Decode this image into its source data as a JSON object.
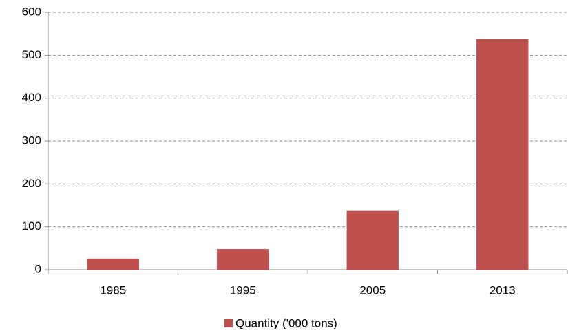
{
  "chart_data": {
    "type": "bar",
    "categories": [
      "1985",
      "1995",
      "2005",
      "2013"
    ],
    "series": [
      {
        "name": "Quantity ('000 tons)",
        "color": "#c0504d",
        "values": [
          26,
          48,
          137,
          538
        ]
      }
    ],
    "ylim": [
      0,
      600
    ],
    "yticks": [
      0,
      100,
      200,
      300,
      400,
      500,
      600
    ],
    "grid": true,
    "legend": "bottom"
  }
}
